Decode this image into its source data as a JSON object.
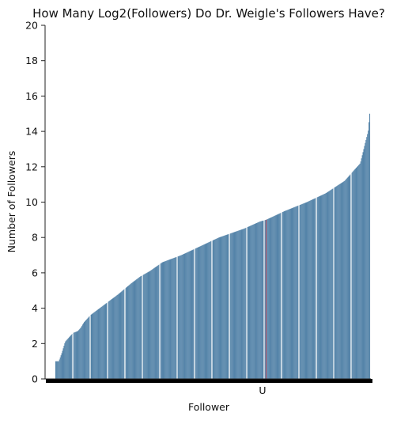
{
  "chart_data": {
    "type": "bar",
    "title": "How Many Log2(Followers) Do Dr. Weigle's Followers Have?",
    "xlabel": "Follower",
    "ylabel": "Number of Followers",
    "ylim": [
      0,
      20
    ],
    "yticks": [
      0,
      2,
      4,
      6,
      8,
      10,
      12,
      14,
      16,
      18,
      20
    ],
    "ytick_labels": [
      "0",
      "2",
      "4",
      "6",
      "8",
      "10",
      "12",
      "14",
      "16",
      "18",
      "20"
    ],
    "xtick_labels": [
      "U"
    ],
    "highlight_label": "U",
    "highlight_value": 9.0,
    "grid": false,
    "bar_color": "#5584a9",
    "highlight_color": "#b5344a",
    "curve_anchors": [
      [
        0.0,
        1.0
      ],
      [
        0.01,
        1.0
      ],
      [
        0.02,
        1.5
      ],
      [
        0.03,
        2.1
      ],
      [
        0.04,
        2.3
      ],
      [
        0.055,
        2.6
      ],
      [
        0.07,
        2.7
      ],
      [
        0.08,
        2.9
      ],
      [
        0.09,
        3.2
      ],
      [
        0.11,
        3.6
      ],
      [
        0.14,
        4.0
      ],
      [
        0.17,
        4.4
      ],
      [
        0.2,
        4.8
      ],
      [
        0.24,
        5.4
      ],
      [
        0.27,
        5.8
      ],
      [
        0.3,
        6.1
      ],
      [
        0.34,
        6.6
      ],
      [
        0.4,
        7.0
      ],
      [
        0.46,
        7.5
      ],
      [
        0.52,
        8.0
      ],
      [
        0.6,
        8.5
      ],
      [
        0.65,
        8.9
      ],
      [
        0.67,
        9.0
      ],
      [
        0.73,
        9.5
      ],
      [
        0.8,
        10.0
      ],
      [
        0.86,
        10.5
      ],
      [
        0.92,
        11.2
      ],
      [
        0.95,
        11.8
      ],
      [
        0.97,
        12.2
      ],
      [
        0.985,
        13.3
      ],
      [
        0.995,
        14.0
      ],
      [
        1.0,
        15.0
      ]
    ],
    "bar_count": 420
  }
}
